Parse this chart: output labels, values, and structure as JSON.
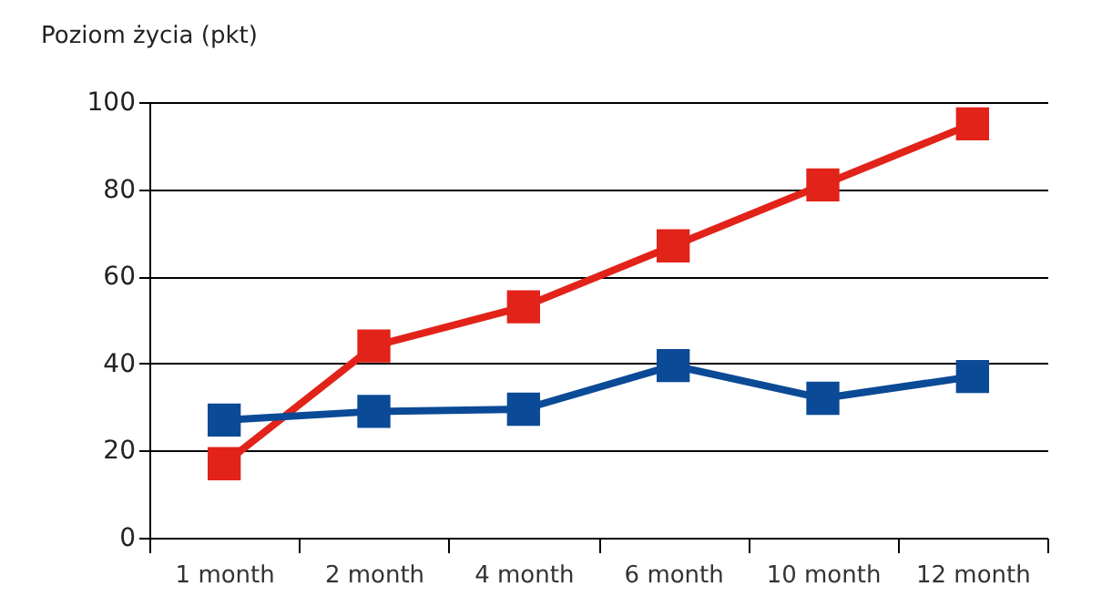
{
  "chart_data": {
    "type": "line",
    "ylabel": "Poziom życia (pkt)",
    "categories": [
      "1 month",
      "2 month",
      "4 month",
      "6 month",
      "10 month",
      "12 month"
    ],
    "series": [
      {
        "color": "#e2231a",
        "values": [
          17,
          44,
          53,
          67,
          81,
          95
        ]
      },
      {
        "color": "#0b4a96",
        "values": [
          27,
          29,
          29.5,
          39.5,
          32,
          37
        ]
      }
    ],
    "ylim": [
      0,
      100
    ],
    "yticks": [
      0,
      20,
      40,
      60,
      80,
      100
    ],
    "grid": "y",
    "legend": false,
    "marker": "square",
    "line_style": "solid"
  }
}
